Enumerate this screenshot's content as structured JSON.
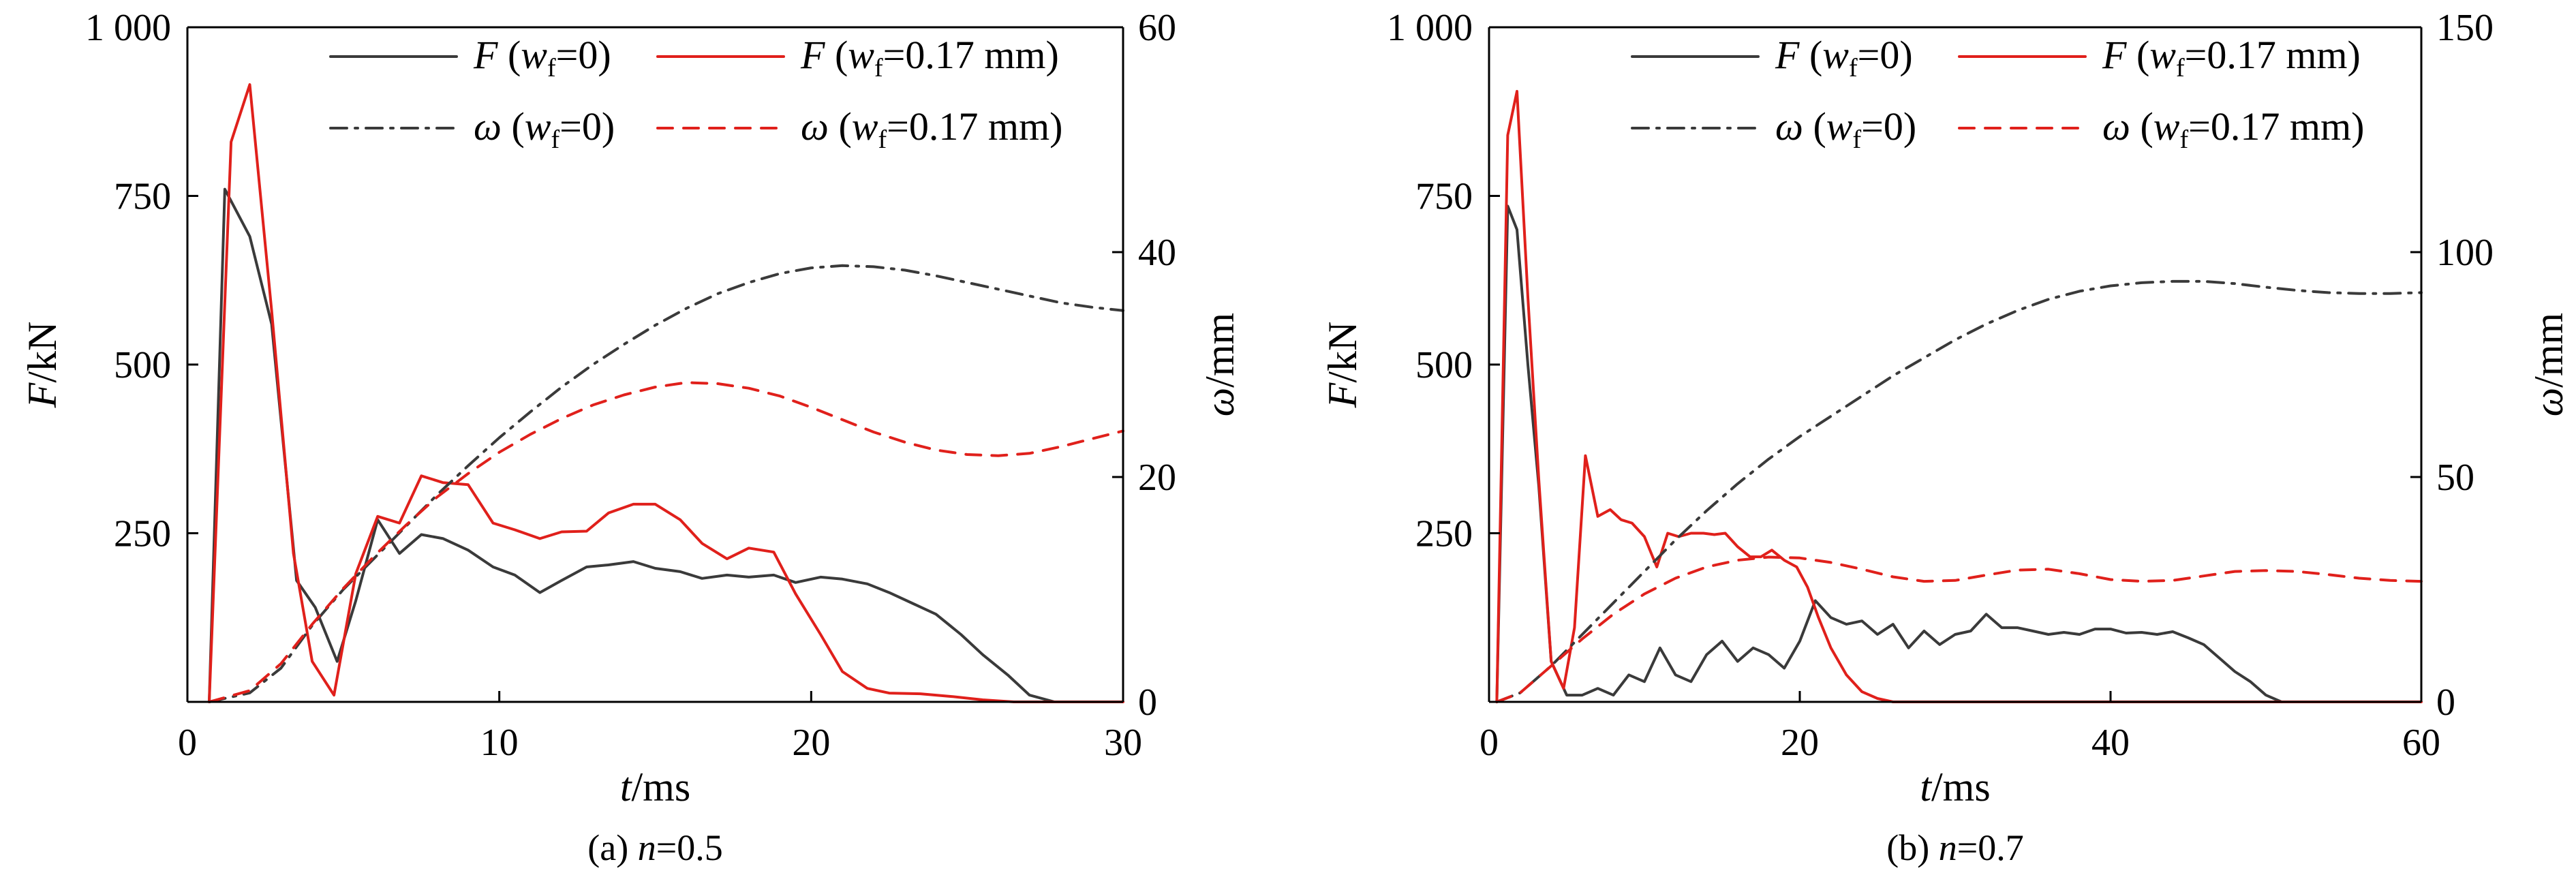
{
  "chart_data": [
    {
      "type": "line",
      "caption": "(a) n=0.5",
      "caption_parts": {
        "prefix": "(a) ",
        "var": "n",
        "suffix": "=0.5"
      },
      "xlabel": {
        "var": "t",
        "unit": "/ms"
      },
      "ylabel_left": {
        "var": "F",
        "unit": "/kN"
      },
      "ylabel_right": {
        "var": "ω",
        "unit": "/mm"
      },
      "xlim": [
        0,
        30
      ],
      "ylim_left": [
        0,
        1000
      ],
      "ylim_right": [
        0,
        60
      ],
      "xticks": [
        0,
        10,
        20,
        30
      ],
      "xtick_labels": [
        "0",
        "10",
        "20",
        "30"
      ],
      "yticks_left": [
        250,
        500,
        750,
        1000
      ],
      "ytick_labels_left": [
        "250",
        "500",
        "750",
        "1 000"
      ],
      "yticks_right": [
        0,
        20,
        40,
        60
      ],
      "ytick_labels_right": [
        "0",
        "20",
        "40",
        "60"
      ],
      "legend_position": "top-right",
      "series": [
        {
          "name": "F (wf=0)",
          "legend": {
            "var": "F",
            "open": " (",
            "w": "w",
            "sub": "f",
            "rest": "=0)"
          },
          "axis": "left",
          "color": "#3a3a3a",
          "dash": "solid",
          "x": [
            0.7,
            1.2,
            2.0,
            2.7,
            3.5,
            4.1,
            4.8,
            5.4,
            6.1,
            6.8,
            7.5,
            8.2,
            9.0,
            9.8,
            10.5,
            11.3,
            12.0,
            12.8,
            13.5,
            14.3,
            15.0,
            15.8,
            16.5,
            17.3,
            18.0,
            18.8,
            19.5,
            20.3,
            21.0,
            21.8,
            22.5,
            23.3,
            24.0,
            24.8,
            25.5,
            26.3,
            27.0,
            27.8
          ],
          "y": [
            0,
            760,
            690,
            560,
            180,
            140,
            60,
            150,
            270,
            220,
            248,
            242,
            225,
            200,
            188,
            162,
            180,
            200,
            203,
            208,
            198,
            193,
            183,
            188,
            185,
            188,
            177,
            185,
            182,
            175,
            162,
            145,
            130,
            100,
            70,
            40,
            10,
            0
          ]
        },
        {
          "name": "F (wf=0.17 mm)",
          "legend": {
            "var": "F",
            "open": " (",
            "w": "w",
            "sub": "f",
            "rest": "=0.17 mm)"
          },
          "axis": "left",
          "color": "#e0201b",
          "dash": "solid",
          "x": [
            0.7,
            1.4,
            2.0,
            2.7,
            3.4,
            4.0,
            4.7,
            5.4,
            6.1,
            6.8,
            7.5,
            8.2,
            9.0,
            9.8,
            10.5,
            11.3,
            12.0,
            12.8,
            13.5,
            14.3,
            15.0,
            15.8,
            16.5,
            17.3,
            18.0,
            18.8,
            19.5,
            20.3,
            21.0,
            21.8,
            22.5,
            23.5,
            24.5,
            25.5,
            26.5,
            27.5,
            28.5,
            30.0
          ],
          "y": [
            0,
            830,
            915,
            580,
            220,
            60,
            10,
            190,
            275,
            265,
            335,
            325,
            322,
            265,
            255,
            242,
            252,
            253,
            280,
            293,
            293,
            270,
            235,
            212,
            228,
            222,
            160,
            100,
            45,
            20,
            13,
            12,
            8,
            3,
            0,
            0,
            0,
            0
          ]
        },
        {
          "name": "ω (wf=0)",
          "legend": {
            "var": "ω",
            "open": " (",
            "w": "w",
            "sub": "f",
            "rest": "=0)"
          },
          "axis": "right",
          "color": "#3a3a3a",
          "dash": "dashdot",
          "x": [
            0.7,
            2.0,
            3.0,
            4.0,
            5.0,
            6.0,
            7.0,
            8.0,
            9.0,
            10.0,
            11.0,
            12.0,
            13.0,
            14.0,
            15.0,
            16.0,
            17.0,
            18.0,
            19.0,
            20.0,
            21.0,
            22.0,
            23.0,
            24.0,
            25.0,
            26.0,
            27.0,
            28.0,
            29.0,
            30.0
          ],
          "y": [
            0,
            0.8,
            3.0,
            6.8,
            10.0,
            12.8,
            15.6,
            18.4,
            21.0,
            23.5,
            25.8,
            28.0,
            30.0,
            31.8,
            33.5,
            35.0,
            36.3,
            37.3,
            38.1,
            38.6,
            38.8,
            38.7,
            38.4,
            37.9,
            37.3,
            36.7,
            36.1,
            35.5,
            35.1,
            34.8
          ]
        },
        {
          "name": "ω (wf=0.17 mm)",
          "legend": {
            "var": "ω",
            "open": " (",
            "w": "w",
            "sub": "f",
            "rest": "=0.17 mm)"
          },
          "axis": "right",
          "color": "#e0201b",
          "dash": "dashed",
          "x": [
            0.7,
            2.0,
            3.0,
            4.0,
            5.0,
            6.0,
            7.0,
            8.0,
            9.0,
            10.0,
            11.0,
            12.0,
            13.0,
            14.0,
            15.0,
            16.0,
            17.0,
            18.0,
            19.0,
            20.0,
            21.0,
            22.0,
            23.0,
            24.0,
            25.0,
            26.0,
            27.0,
            28.0,
            29.0,
            30.0
          ],
          "y": [
            0,
            1.0,
            3.4,
            6.9,
            10.1,
            13.0,
            15.7,
            18.2,
            20.3,
            22.2,
            23.8,
            25.2,
            26.4,
            27.3,
            28.0,
            28.4,
            28.3,
            27.9,
            27.2,
            26.2,
            25.1,
            24.0,
            23.1,
            22.4,
            22.0,
            21.9,
            22.1,
            22.7,
            23.4,
            24.1
          ]
        }
      ]
    },
    {
      "type": "line",
      "caption": "(b) n=0.7",
      "caption_parts": {
        "prefix": "(b) ",
        "var": "n",
        "suffix": "=0.7"
      },
      "xlabel": {
        "var": "t",
        "unit": "/ms"
      },
      "ylabel_left": {
        "var": "F",
        "unit": "/kN"
      },
      "ylabel_right": {
        "var": "ω",
        "unit": "/mm"
      },
      "xlim": [
        0,
        60
      ],
      "ylim_left": [
        0,
        1000
      ],
      "ylim_right": [
        0,
        150
      ],
      "xticks": [
        0,
        20,
        40,
        60
      ],
      "xtick_labels": [
        "0",
        "20",
        "40",
        "60"
      ],
      "yticks_left": [
        250,
        500,
        750,
        1000
      ],
      "ytick_labels_left": [
        "250",
        "500",
        "750",
        "1 000"
      ],
      "yticks_right": [
        0,
        50,
        100,
        150
      ],
      "ytick_labels_right": [
        "0",
        "50",
        "100",
        "150"
      ],
      "legend_position": "top-right",
      "series": [
        {
          "name": "F (wf=0)",
          "legend": {
            "var": "F",
            "open": " (",
            "w": "w",
            "sub": "f",
            "rest": "=0)"
          },
          "axis": "left",
          "color": "#3a3a3a",
          "dash": "solid",
          "x": [
            0.5,
            1.2,
            1.8,
            2.5,
            3.2,
            4.0,
            5.0,
            6.0,
            7.0,
            8.0,
            9.0,
            10.0,
            11.0,
            12.0,
            13.0,
            14.0,
            15.0,
            16.0,
            17.0,
            18.0,
            19.0,
            20.0,
            21.0,
            22.0,
            23.0,
            24.0,
            25.0,
            26.0,
            27.0,
            28.0,
            29.0,
            30.0,
            31.0,
            32.0,
            33.0,
            34.0,
            35.0,
            36.0,
            37.0,
            38.0,
            39.0,
            40.0,
            41.0,
            42.0,
            43.0,
            44.0,
            45.0,
            46.0,
            47.0,
            48.0,
            49.0,
            50.0,
            51.0
          ],
          "y": [
            0,
            735,
            700,
            500,
            320,
            60,
            10,
            10,
            20,
            10,
            40,
            30,
            80,
            40,
            30,
            70,
            90,
            60,
            80,
            70,
            50,
            90,
            150,
            125,
            115,
            120,
            100,
            115,
            80,
            105,
            85,
            100,
            105,
            130,
            110,
            110,
            105,
            100,
            103,
            100,
            108,
            108,
            102,
            103,
            100,
            104,
            95,
            85,
            65,
            45,
            30,
            10,
            0
          ]
        },
        {
          "name": "F (wf=0.17 mm)",
          "legend": {
            "var": "F",
            "open": " (",
            "w": "w",
            "sub": "f",
            "rest": "=0.17 mm)"
          },
          "axis": "left",
          "color": "#e0201b",
          "dash": "solid",
          "x": [
            0.5,
            1.2,
            1.8,
            2.5,
            3.2,
            4.0,
            4.8,
            5.5,
            6.2,
            7.0,
            7.8,
            8.5,
            9.2,
            10.0,
            10.8,
            11.5,
            12.2,
            13.0,
            13.8,
            14.5,
            15.2,
            16.0,
            16.8,
            17.5,
            18.2,
            19.0,
            19.8,
            20.5,
            21.2,
            22.0,
            23.0,
            24.0,
            25.0,
            26.0,
            28.0,
            30.0,
            60.0
          ],
          "y": [
            0,
            840,
            905,
            600,
            330,
            60,
            20,
            110,
            365,
            275,
            285,
            270,
            265,
            245,
            200,
            250,
            245,
            250,
            250,
            248,
            250,
            230,
            215,
            215,
            225,
            210,
            200,
            170,
            125,
            80,
            40,
            15,
            5,
            0,
            0,
            0,
            0
          ]
        },
        {
          "name": "ω (wf=0)",
          "legend": {
            "var": "ω",
            "open": " (",
            "w": "w",
            "sub": "f",
            "rest": "=0)"
          },
          "axis": "right",
          "color": "#3a3a3a",
          "dash": "dashdot",
          "x": [
            0.5,
            2.0,
            4.0,
            6.0,
            8.0,
            10.0,
            12.0,
            14.0,
            16.0,
            18.0,
            20.0,
            22.0,
            24.0,
            26.0,
            28.0,
            30.0,
            32.0,
            34.0,
            36.0,
            38.0,
            40.0,
            42.0,
            44.0,
            46.0,
            48.0,
            50.0,
            52.0,
            54.0,
            56.0,
            58.0,
            60.0
          ],
          "y": [
            0,
            2.0,
            8.0,
            15.0,
            22.0,
            29.0,
            36.0,
            42.5,
            48.5,
            54.0,
            59.0,
            63.5,
            68.0,
            72.5,
            76.5,
            80.5,
            84.0,
            87.0,
            89.5,
            91.3,
            92.5,
            93.2,
            93.5,
            93.5,
            93.0,
            92.2,
            91.5,
            91.0,
            90.8,
            90.8,
            91.0
          ]
        },
        {
          "name": "ω (wf=0.17 mm)",
          "legend": {
            "var": "ω",
            "open": " (",
            "w": "w",
            "sub": "f",
            "rest": "=0.17 mm)"
          },
          "axis": "right",
          "color": "#e0201b",
          "dash": "dashed",
          "x": [
            0.5,
            2.0,
            4.0,
            6.0,
            8.0,
            10.0,
            12.0,
            14.0,
            16.0,
            18.0,
            20.0,
            22.0,
            24.0,
            26.0,
            28.0,
            30.0,
            32.0,
            34.0,
            36.0,
            38.0,
            40.0,
            42.0,
            44.0,
            46.0,
            48.0,
            50.0,
            52.0,
            54.0,
            56.0,
            58.0,
            60.0
          ],
          "y": [
            0,
            2.0,
            8.0,
            14.0,
            19.5,
            24.0,
            27.5,
            30.0,
            31.5,
            32.2,
            32.0,
            31.0,
            29.5,
            27.8,
            26.8,
            27.0,
            28.2,
            29.3,
            29.5,
            28.5,
            27.2,
            26.8,
            27.0,
            28.0,
            29.0,
            29.2,
            29.0,
            28.3,
            27.5,
            27.0,
            26.8
          ]
        }
      ]
    }
  ]
}
